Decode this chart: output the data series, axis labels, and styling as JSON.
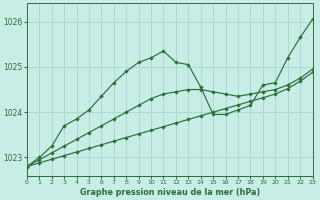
{
  "title": "Graphe pression niveau de la mer (hPa)",
  "bg_color": "#c8ece6",
  "grid_color": "#a8d8d0",
  "line_color": "#2a6e3a",
  "xlim": [
    0,
    23
  ],
  "ylim": [
    1022.6,
    1026.4
  ],
  "yticks": [
    1023,
    1024,
    1025,
    1026
  ],
  "xticks": [
    0,
    1,
    2,
    3,
    4,
    5,
    6,
    7,
    8,
    9,
    10,
    11,
    12,
    13,
    14,
    15,
    16,
    17,
    18,
    19,
    20,
    21,
    22,
    23
  ],
  "series1": {
    "x": [
      0,
      1,
      2,
      3,
      4,
      5,
      6,
      7,
      8,
      9,
      10,
      11,
      12,
      13,
      14,
      15,
      16,
      17,
      18,
      19,
      20,
      21,
      22,
      23
    ],
    "y": [
      1022.8,
      1023.0,
      1023.25,
      1023.7,
      1023.85,
      1024.05,
      1024.35,
      1024.65,
      1024.9,
      1025.1,
      1025.2,
      1025.35,
      1025.1,
      1025.05,
      1024.55,
      1023.95,
      1023.95,
      1024.05,
      1024.15,
      1024.6,
      1024.65,
      1025.2,
      1025.65,
      1026.05
    ]
  },
  "series2": {
    "x": [
      0,
      1,
      2,
      3,
      4,
      5,
      6,
      7,
      8,
      9,
      10,
      11,
      12,
      13,
      14,
      15,
      16,
      17,
      18,
      19,
      20,
      21,
      22,
      23
    ],
    "y": [
      1022.8,
      1022.95,
      1023.1,
      1023.25,
      1023.4,
      1023.55,
      1023.7,
      1023.85,
      1024.0,
      1024.15,
      1024.3,
      1024.4,
      1024.45,
      1024.5,
      1024.5,
      1024.45,
      1024.4,
      1024.35,
      1024.4,
      1024.45,
      1024.5,
      1024.6,
      1024.75,
      1024.95
    ]
  },
  "series3": {
    "x": [
      0,
      1,
      2,
      3,
      4,
      5,
      6,
      7,
      8,
      9,
      10,
      11,
      12,
      13,
      14,
      15,
      16,
      17,
      18,
      19,
      20,
      21,
      22,
      23
    ],
    "y": [
      1022.8,
      1022.88,
      1022.96,
      1023.04,
      1023.12,
      1023.2,
      1023.28,
      1023.36,
      1023.44,
      1023.52,
      1023.6,
      1023.68,
      1023.76,
      1023.84,
      1023.92,
      1024.0,
      1024.08,
      1024.16,
      1024.24,
      1024.32,
      1024.4,
      1024.52,
      1024.68,
      1024.88
    ]
  }
}
